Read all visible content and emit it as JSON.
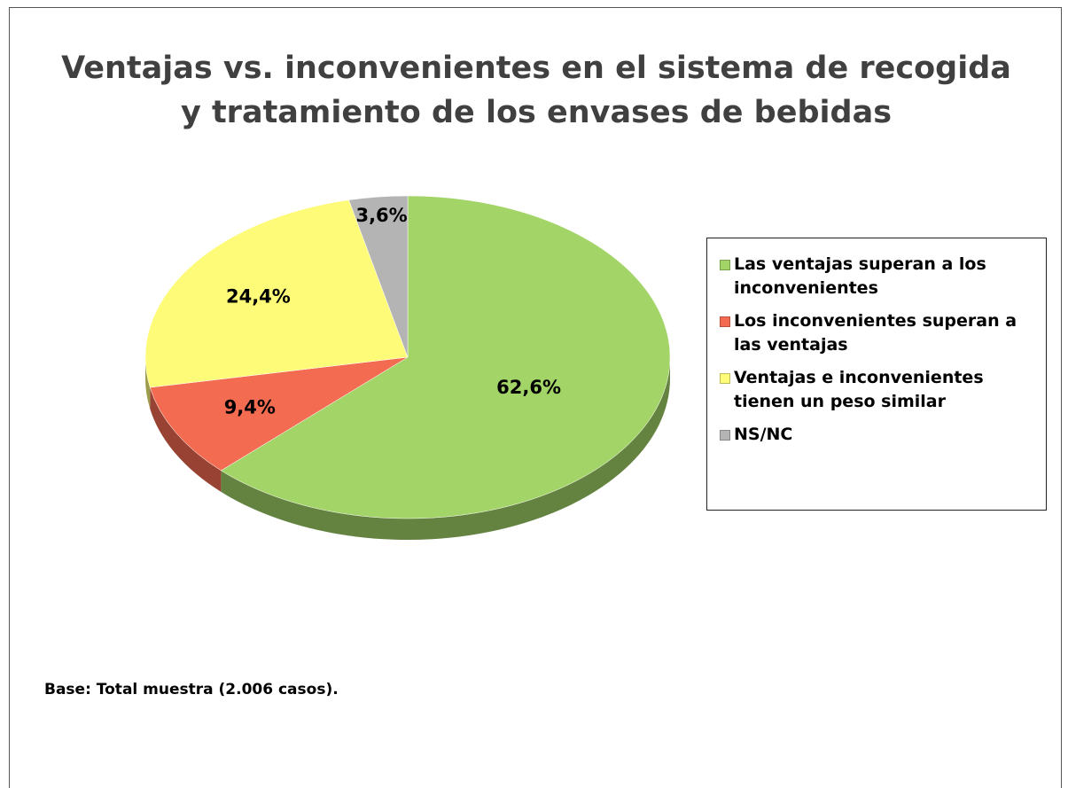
{
  "chart_data": {
    "type": "pie",
    "title": "Ventajas vs. inconvenientes en el sistema de recogida y tratamiento de los envases de bebidas",
    "categories": [
      "Las ventajas superan a los inconvenientes",
      "Los inconvenientes superan a las ventajas",
      "Ventajas e inconvenientes tienen un peso similar",
      "NS/NC"
    ],
    "values": [
      62.6,
      9.4,
      24.4,
      3.6
    ],
    "value_labels": [
      "62,6%",
      "9,4%",
      "24,4%",
      "3,6%"
    ],
    "colors": [
      "#a3d468",
      "#f36b50",
      "#fdfb78",
      "#b4b4b4"
    ],
    "legend": "right",
    "footnote": "Base: Total muestra (2.006 casos)."
  }
}
